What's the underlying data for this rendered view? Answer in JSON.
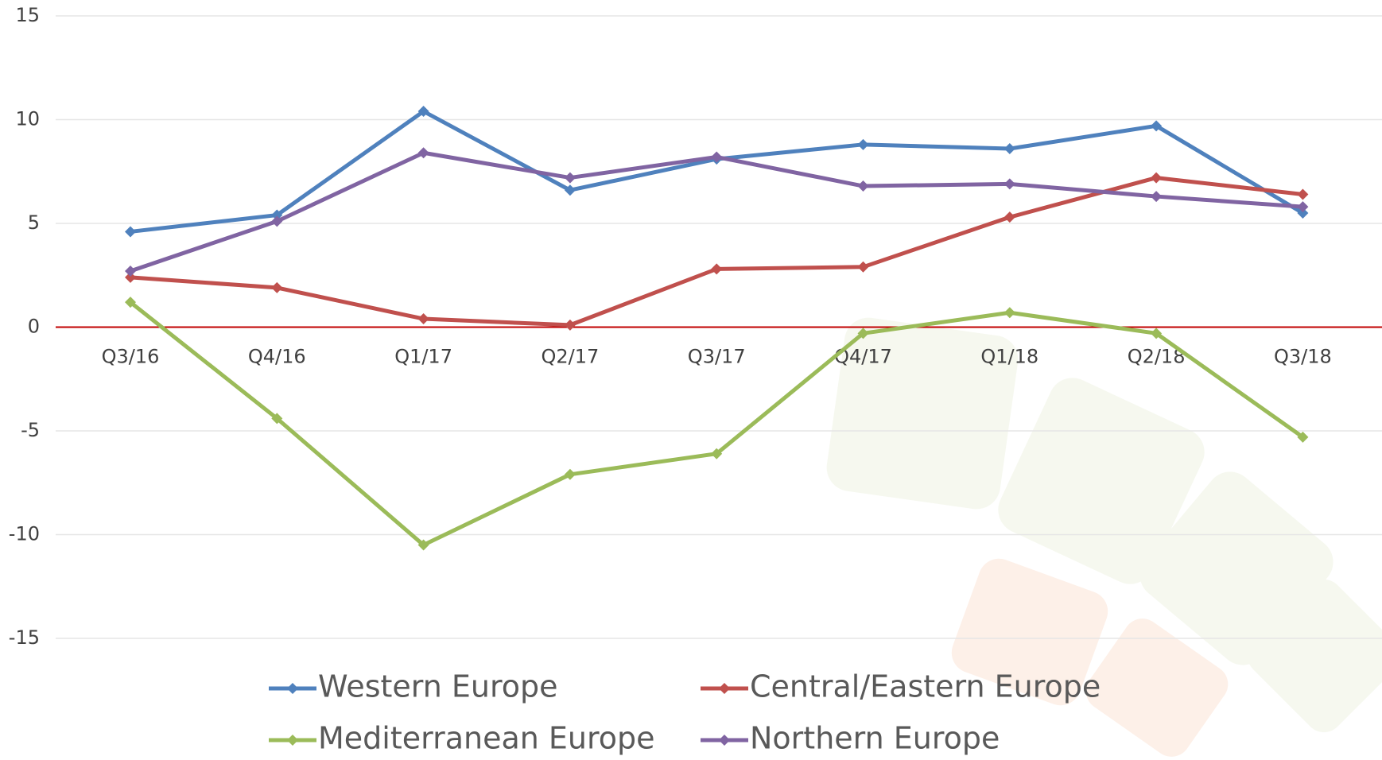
{
  "chart_data": {
    "type": "line",
    "categories": [
      "Q3/16",
      "Q4/16",
      "Q1/17",
      "Q2/17",
      "Q3/17",
      "Q4/17",
      "Q1/18",
      "Q2/18",
      "Q3/18"
    ],
    "series": [
      {
        "name": "Western Europe",
        "color": "#4f81bd",
        "values": [
          4.6,
          5.4,
          10.4,
          6.6,
          8.1,
          8.8,
          8.6,
          9.7,
          5.5
        ]
      },
      {
        "name": "Central/Eastern Europe",
        "color": "#c0504d",
        "values": [
          2.4,
          1.9,
          0.4,
          0.1,
          2.8,
          2.9,
          5.3,
          7.2,
          6.4
        ]
      },
      {
        "name": "Mediterranean Europe",
        "color": "#9bbb59",
        "values": [
          1.2,
          -4.4,
          -10.5,
          -7.1,
          -6.1,
          -0.3,
          0.7,
          -0.3,
          -5.3
        ]
      },
      {
        "name": "Northern Europe",
        "color": "#8064a2",
        "values": [
          2.7,
          5.1,
          8.4,
          7.2,
          8.2,
          6.8,
          6.9,
          6.3,
          5.8
        ]
      }
    ],
    "ylim": [
      -15,
      15
    ],
    "yticks": [
      -15,
      -10,
      -5,
      0,
      5,
      10,
      15
    ],
    "grid": true,
    "zero_line_color": "#c00000"
  }
}
